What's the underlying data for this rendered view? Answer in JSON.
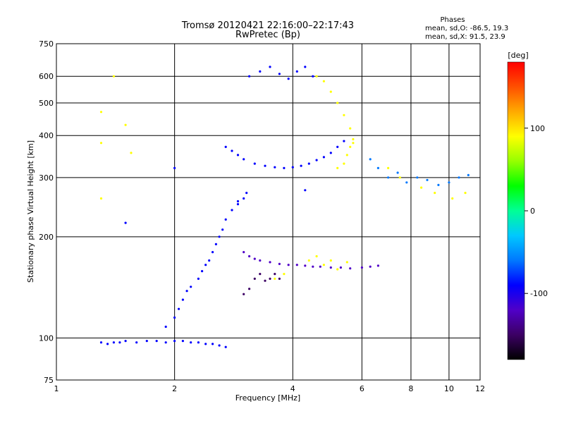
{
  "chart_data": {
    "type": "scatter",
    "title": "Tromsø 20120421 22:16:00–22:17:43",
    "subtitle": "RwPretec (Bp)",
    "xlabel": "Frequency [MHz]",
    "ylabel": "Stationary phase Virtual Height [km]",
    "x_scale": "log",
    "y_scale": "log",
    "xlim": [
      1,
      12
    ],
    "ylim": [
      75,
      750
    ],
    "xticks": [
      1,
      2,
      4,
      6,
      8,
      10,
      12
    ],
    "xtick_labels": [
      "1",
      "2",
      "4",
      "6",
      "8",
      "10",
      "12"
    ],
    "yticks": [
      75,
      100,
      200,
      300,
      400,
      500,
      600,
      750
    ],
    "ytick_labels": [
      "75",
      "100",
      "200",
      "300",
      "400",
      "500",
      "600",
      "750"
    ],
    "grid": true,
    "phase_info": {
      "heading": "Phases",
      "line1": "mean, sd,O:  -86.5, 19.3",
      "line2": "mean, sd,X:  91.5, 23.9"
    },
    "colorbar": {
      "label": "[deg]",
      "ticks": [
        100,
        0,
        -100
      ],
      "tick_labels": [
        "100",
        "0",
        "-100"
      ],
      "range": [
        -180,
        180
      ],
      "colors": [
        "#000000",
        "#3c0064",
        "#5000c8",
        "#0000ff",
        "#0078ff",
        "#00c8ff",
        "#00ff96",
        "#00ff00",
        "#96ff00",
        "#ffff00",
        "#ffaa00",
        "#ff5000",
        "#ff0000"
      ]
    },
    "series": [
      {
        "x": [
          1.3,
          1.35,
          1.4,
          1.45,
          1.5,
          1.6,
          1.7,
          1.8,
          1.9,
          2.0,
          2.1,
          2.2,
          2.3,
          2.4,
          2.5,
          2.6,
          2.7
        ],
        "y": [
          97,
          96,
          97,
          97,
          98,
          97,
          98,
          98,
          97,
          98,
          98,
          97,
          97,
          96,
          96,
          95,
          94
        ],
        "phase": -100
      },
      {
        "x": [
          1.9,
          2.0,
          2.05,
          2.1,
          2.15,
          2.2,
          2.3,
          2.35,
          2.4,
          2.45,
          2.5,
          2.55,
          2.6,
          2.65,
          2.7,
          2.8,
          2.9,
          3.0,
          3.05
        ],
        "y": [
          108,
          115,
          122,
          130,
          138,
          142,
          150,
          158,
          165,
          170,
          180,
          190,
          200,
          210,
          225,
          240,
          250,
          260,
          270
        ],
        "phase": -90
      },
      {
        "x": [
          3.0,
          3.1,
          3.2,
          3.3,
          3.5,
          3.7,
          3.9,
          4.1,
          4.3,
          4.5,
          4.7,
          5.0,
          5.3,
          5.6,
          6.0,
          6.3,
          6.6
        ],
        "y": [
          180,
          175,
          172,
          170,
          168,
          166,
          165,
          165,
          164,
          163,
          163,
          162,
          162,
          161,
          162,
          163,
          164
        ],
        "phase": -110
      },
      {
        "x": [
          3.0,
          3.1,
          3.2,
          3.3,
          3.4,
          3.5,
          3.6,
          3.7
        ],
        "y": [
          135,
          140,
          150,
          155,
          148,
          150,
          155,
          150
        ],
        "phase": -140
      },
      {
        "x": [
          2.7,
          2.8,
          2.9,
          3.0,
          3.2,
          3.4,
          3.6,
          3.8,
          4.0,
          4.2,
          4.4,
          4.6,
          4.8,
          5.0,
          5.2,
          5.4
        ],
        "y": [
          370,
          360,
          350,
          340,
          330,
          325,
          322,
          320,
          322,
          325,
          330,
          338,
          345,
          355,
          370,
          385
        ],
        "phase": -100
      },
      {
        "x": [
          3.1,
          3.3,
          3.5,
          3.7,
          3.9,
          4.1,
          4.3,
          4.5
        ],
        "y": [
          600,
          620,
          640,
          610,
          590,
          620,
          640,
          600
        ],
        "phase": -105
      },
      {
        "x": [
          4.6,
          4.8,
          5.0,
          5.2,
          5.4,
          5.6,
          5.7
        ],
        "y": [
          600,
          580,
          540,
          500,
          460,
          420,
          380
        ],
        "phase": 90
      },
      {
        "x": [
          5.2,
          5.4,
          5.5,
          5.6,
          5.7
        ],
        "y": [
          320,
          330,
          350,
          370,
          390
        ],
        "phase": 95
      },
      {
        "x": [
          3.6,
          3.8,
          4.4,
          4.6,
          4.8,
          5.0,
          5.2,
          5.5
        ],
        "y": [
          150,
          155,
          170,
          175,
          165,
          170,
          160,
          168
        ],
        "phase": 90
      },
      {
        "x": [
          6.3,
          6.6,
          7.0,
          7.4,
          7.8,
          8.3,
          8.8,
          9.4,
          10.0,
          10.6,
          11.2
        ],
        "y": [
          340,
          320,
          300,
          310,
          290,
          300,
          295,
          285,
          290,
          300,
          305
        ],
        "phase": -60
      },
      {
        "x": [
          7.0,
          7.5,
          8.5,
          9.2,
          10.2,
          11.0
        ],
        "y": [
          320,
          300,
          280,
          270,
          260,
          270
        ],
        "phase": 90
      },
      {
        "x": [
          1.3,
          1.3,
          1.3,
          1.4,
          1.5,
          1.55
        ],
        "y": [
          470,
          380,
          260,
          600,
          430,
          355
        ],
        "phase": 80
      },
      {
        "x": [
          1.5,
          2.0,
          2.9,
          4.3
        ],
        "y": [
          220,
          320,
          255,
          275
        ],
        "phase": -80
      }
    ]
  }
}
